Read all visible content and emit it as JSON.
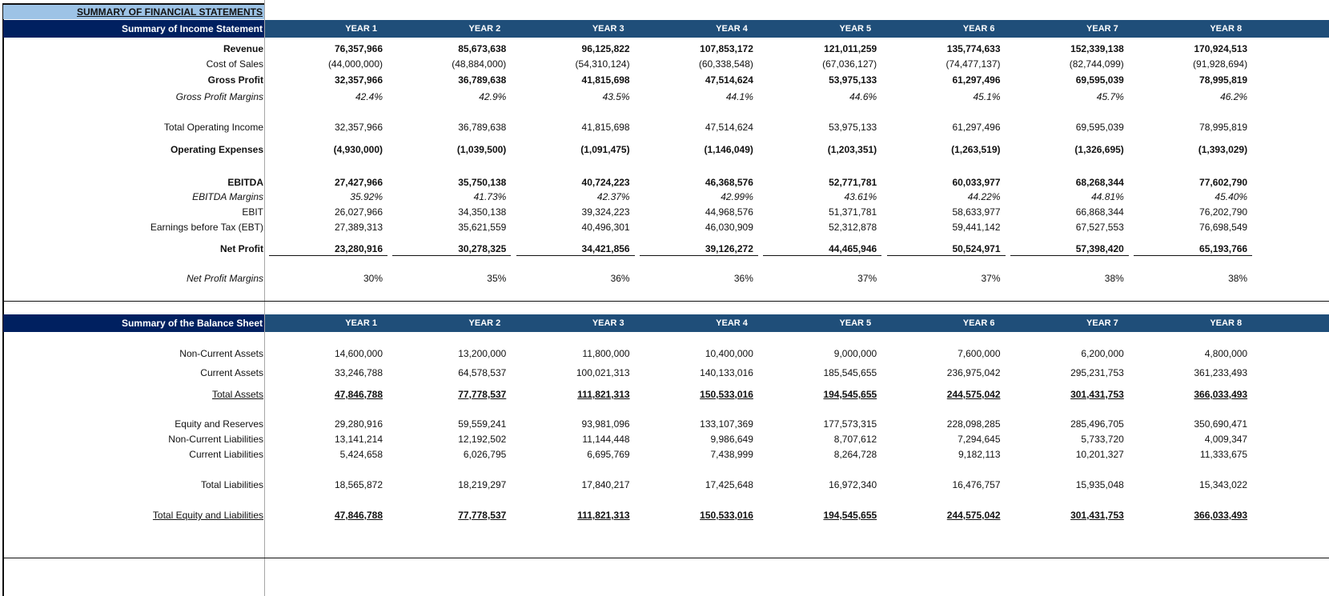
{
  "title": "SUMMARY OF FINANCIAL STATEMENTS",
  "colors": {
    "title_band": "#9dc3e6",
    "section_label": "#002060",
    "year_header": "#1f4e79"
  },
  "years": [
    "YEAR 1",
    "YEAR 2",
    "YEAR 3",
    "YEAR 4",
    "YEAR 5",
    "YEAR 6",
    "YEAR 7",
    "YEAR 8"
  ],
  "income": {
    "header": "Summary of Income Statement",
    "rows": [
      {
        "label": "Revenue",
        "values": [
          "76,357,966",
          "85,673,638",
          "96,125,822",
          "107,853,172",
          "121,011,259",
          "135,774,633",
          "152,339,138",
          "170,924,513"
        ]
      },
      {
        "label": "Cost of Sales",
        "values": [
          "(44,000,000)",
          "(48,884,000)",
          "(54,310,124)",
          "(60,338,548)",
          "(67,036,127)",
          "(74,477,137)",
          "(82,744,099)",
          "(91,928,694)"
        ]
      },
      {
        "label": "Gross Profit",
        "values": [
          "32,357,966",
          "36,789,638",
          "41,815,698",
          "47,514,624",
          "53,975,133",
          "61,297,496",
          "69,595,039",
          "78,995,819"
        ]
      },
      {
        "label": "Gross Profit Margins",
        "values": [
          "42.4%",
          "42.9%",
          "43.5%",
          "44.1%",
          "44.6%",
          "45.1%",
          "45.7%",
          "46.2%"
        ]
      },
      {
        "label": "Total Operating Income",
        "values": [
          "32,357,966",
          "36,789,638",
          "41,815,698",
          "47,514,624",
          "53,975,133",
          "61,297,496",
          "69,595,039",
          "78,995,819"
        ]
      },
      {
        "label": "Operating Expenses",
        "values": [
          "(4,930,000)",
          "(1,039,500)",
          "(1,091,475)",
          "(1,146,049)",
          "(1,203,351)",
          "(1,263,519)",
          "(1,326,695)",
          "(1,393,029)"
        ]
      },
      {
        "label": "EBITDA",
        "values": [
          "27,427,966",
          "35,750,138",
          "40,724,223",
          "46,368,576",
          "52,771,781",
          "60,033,977",
          "68,268,344",
          "77,602,790"
        ]
      },
      {
        "label": "EBITDA Margins",
        "values": [
          "35.92%",
          "41.73%",
          "42.37%",
          "42.99%",
          "43.61%",
          "44.22%",
          "44.81%",
          "45.40%"
        ]
      },
      {
        "label": "EBIT",
        "values": [
          "26,027,966",
          "34,350,138",
          "39,324,223",
          "44,968,576",
          "51,371,781",
          "58,633,977",
          "66,868,344",
          "76,202,790"
        ]
      },
      {
        "label": "Earnings before Tax (EBT)",
        "values": [
          "27,389,313",
          "35,621,559",
          "40,496,301",
          "46,030,909",
          "52,312,878",
          "59,441,142",
          "67,527,553",
          "76,698,549"
        ]
      },
      {
        "label": "Net Profit",
        "values": [
          "23,280,916",
          "30,278,325",
          "34,421,856",
          "39,126,272",
          "44,465,946",
          "50,524,971",
          "57,398,420",
          "65,193,766"
        ]
      },
      {
        "label": "Net Profit Margins",
        "values": [
          "30%",
          "35%",
          "36%",
          "36%",
          "37%",
          "37%",
          "38%",
          "38%"
        ]
      }
    ]
  },
  "balance": {
    "header": "Summary of the Balance Sheet",
    "rows": [
      {
        "label": "Non-Current Assets",
        "values": [
          "14,600,000",
          "13,200,000",
          "11,800,000",
          "10,400,000",
          "9,000,000",
          "7,600,000",
          "6,200,000",
          "4,800,000"
        ]
      },
      {
        "label": "Current Assets",
        "values": [
          "33,246,788",
          "64,578,537",
          "100,021,313",
          "140,133,016",
          "185,545,655",
          "236,975,042",
          "295,231,753",
          "361,233,493"
        ]
      },
      {
        "label": "Total Assets",
        "values": [
          "47,846,788",
          "77,778,537",
          "111,821,313",
          "150,533,016",
          "194,545,655",
          "244,575,042",
          "301,431,753",
          "366,033,493"
        ]
      },
      {
        "label": "Equity and Reserves",
        "values": [
          "29,280,916",
          "59,559,241",
          "93,981,096",
          "133,107,369",
          "177,573,315",
          "228,098,285",
          "285,496,705",
          "350,690,471"
        ]
      },
      {
        "label": "Non-Current Liabilities",
        "values": [
          "13,141,214",
          "12,192,502",
          "11,144,448",
          "9,986,649",
          "8,707,612",
          "7,294,645",
          "5,733,720",
          "4,009,347"
        ]
      },
      {
        "label": "Current Liabilities",
        "values": [
          "5,424,658",
          "6,026,795",
          "6,695,769",
          "7,438,999",
          "8,264,728",
          "9,182,113",
          "10,201,327",
          "11,333,675"
        ]
      },
      {
        "label": "Total Liabilities",
        "values": [
          "18,565,872",
          "18,219,297",
          "17,840,217",
          "17,425,648",
          "16,972,340",
          "16,476,757",
          "15,935,048",
          "15,343,022"
        ]
      },
      {
        "label": "Total Equity and Liabilities",
        "values": [
          "47,846,788",
          "77,778,537",
          "111,821,313",
          "150,533,016",
          "194,545,655",
          "244,575,042",
          "301,431,753",
          "366,033,493"
        ]
      }
    ]
  }
}
